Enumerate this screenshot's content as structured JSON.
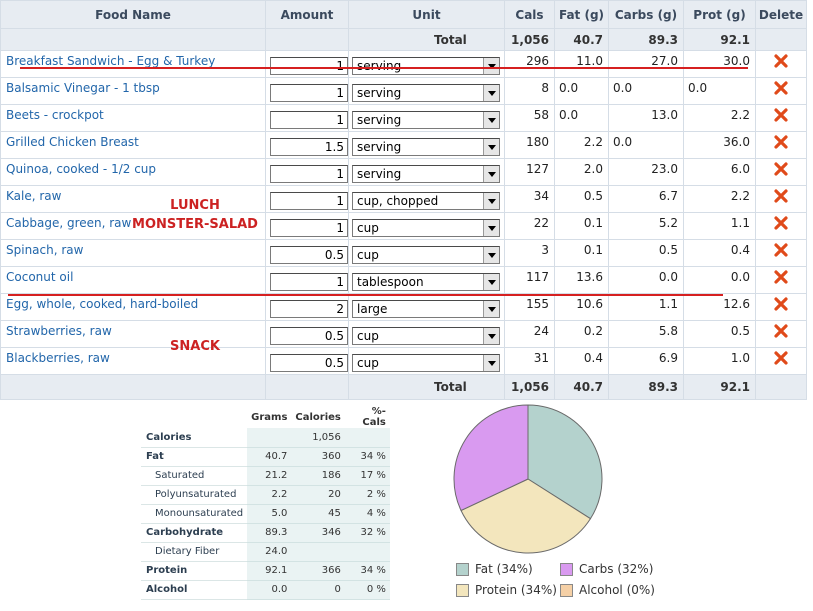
{
  "columns": {
    "food_name": "Food Name",
    "amount": "Amount",
    "unit": "Unit",
    "cals": "Cals",
    "fat": "Fat (g)",
    "carbs": "Carbs (g)",
    "prot": "Prot (g)",
    "delete": "Delete"
  },
  "totals": {
    "label": "Total",
    "cals": "1,056",
    "fat": "40.7",
    "carbs": "89.3",
    "prot": "92.1"
  },
  "foods": [
    {
      "name": "Breakfast Sandwich - Egg & Turkey",
      "amount": "1",
      "unit": "serving",
      "cals": "296",
      "fat": "11.0",
      "carbs": "27.0",
      "prot": "30.0"
    },
    {
      "name": "Balsamic Vinegar - 1 tbsp",
      "amount": "1",
      "unit": "serving",
      "cals": "8",
      "fat": "0.0",
      "carbs": "0.0",
      "prot": "0.0"
    },
    {
      "name": "Beets - crockpot",
      "amount": "1",
      "unit": "serving",
      "cals": "58",
      "fat": "0.0",
      "carbs": "13.0",
      "prot": "2.2"
    },
    {
      "name": "Grilled Chicken Breast",
      "amount": "1.5",
      "unit": "serving",
      "cals": "180",
      "fat": "2.2",
      "carbs": "0.0",
      "prot": "36.0"
    },
    {
      "name": "Quinoa, cooked - 1/2 cup",
      "amount": "1",
      "unit": "serving",
      "cals": "127",
      "fat": "2.0",
      "carbs": "23.0",
      "prot": "6.0"
    },
    {
      "name": "Kale, raw",
      "amount": "1",
      "unit": "cup, chopped",
      "cals": "34",
      "fat": "0.5",
      "carbs": "6.7",
      "prot": "2.2"
    },
    {
      "name": "Cabbage, green, raw",
      "amount": "1",
      "unit": "cup",
      "cals": "22",
      "fat": "0.1",
      "carbs": "5.2",
      "prot": "1.1"
    },
    {
      "name": "Spinach, raw",
      "amount": "0.5",
      "unit": "cup",
      "cals": "3",
      "fat": "0.1",
      "carbs": "0.5",
      "prot": "0.4"
    },
    {
      "name": "Coconut oil",
      "amount": "1",
      "unit": "tablespoon",
      "cals": "117",
      "fat": "13.6",
      "carbs": "0.0",
      "prot": "0.0"
    },
    {
      "name": "Egg, whole, cooked, hard-boiled",
      "amount": "2",
      "unit": "large",
      "cals": "155",
      "fat": "10.6",
      "carbs": "1.1",
      "prot": "12.6"
    },
    {
      "name": "Strawberries, raw",
      "amount": "0.5",
      "unit": "cup",
      "cals": "24",
      "fat": "0.2",
      "carbs": "5.8",
      "prot": "0.5"
    },
    {
      "name": "Blackberries, raw",
      "amount": "0.5",
      "unit": "cup",
      "cals": "31",
      "fat": "0.4",
      "carbs": "6.9",
      "prot": "1.0"
    }
  ],
  "annotations": {
    "lunch_line1": "LUNCH",
    "lunch_line2": "MONSTER-SALAD",
    "snack": "SNACK"
  },
  "summary": {
    "headers": {
      "grams": "Grams",
      "calories": "Calories",
      "pct_cals": "%-Cals"
    },
    "rows": [
      {
        "label": "Calories",
        "grams": "",
        "calories": "1,056",
        "pct": "",
        "sub": false
      },
      {
        "label": "Fat",
        "grams": "40.7",
        "calories": "360",
        "pct": "34 %",
        "sub": false
      },
      {
        "label": "Saturated",
        "grams": "21.2",
        "calories": "186",
        "pct": "17 %",
        "sub": true
      },
      {
        "label": "Polyunsaturated",
        "grams": "2.2",
        "calories": "20",
        "pct": "2 %",
        "sub": true
      },
      {
        "label": "Monounsaturated",
        "grams": "5.0",
        "calories": "45",
        "pct": "4 %",
        "sub": true
      },
      {
        "label": "Carbohydrate",
        "grams": "89.3",
        "calories": "346",
        "pct": "32 %",
        "sub": false
      },
      {
        "label": "Dietary Fiber",
        "grams": "24.0",
        "calories": "",
        "pct": "",
        "sub": true
      },
      {
        "label": "Protein",
        "grams": "92.1",
        "calories": "366",
        "pct": "34 %",
        "sub": false
      },
      {
        "label": "Alcohol",
        "grams": "0.0",
        "calories": "0",
        "pct": "0 %",
        "sub": false
      }
    ]
  },
  "chart_data": {
    "type": "pie",
    "series": [
      {
        "label": "Fat (34%)",
        "value": 34,
        "color": "#b4d2cd"
      },
      {
        "label": "Carbs (32%)",
        "value": 32,
        "color": "#d99af0"
      },
      {
        "label": "Protein (34%)",
        "value": 34,
        "color": "#f3e6bd"
      },
      {
        "label": "Alcohol (0%)",
        "value": 0,
        "color": "#f5d0a6"
      }
    ]
  },
  "colors": {
    "header_bg": "#e7ecf2",
    "link": "#2266aa",
    "annotation": "#cc2222",
    "delete_icon": "#e04a1a"
  }
}
